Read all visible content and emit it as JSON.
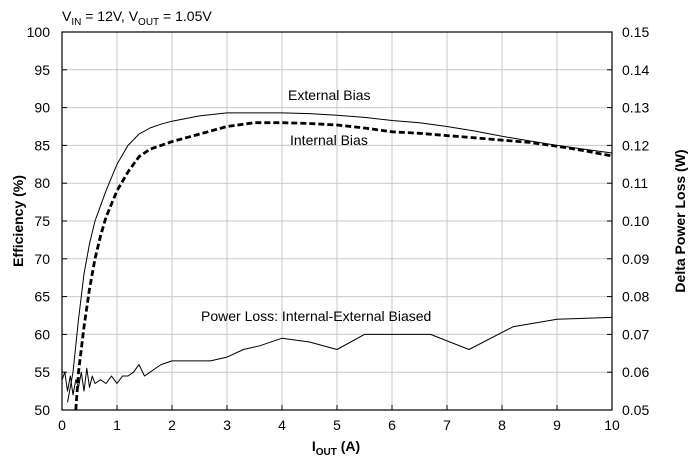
{
  "chart_data": {
    "type": "line",
    "title": {
      "vin_label": "V",
      "vin_sub": "IN",
      "vin_value": " = 12V, ",
      "vout_label": "V",
      "vout_sub": "OUT",
      "vout_value": " = 1.05V"
    },
    "xlabel": {
      "main": "I",
      "sub": "OUT",
      "unit": " (A)"
    },
    "ylabel_left": "Efficiency (%)",
    "ylabel_right": "Delta Power Loss (W)",
    "xlim": [
      0,
      10
    ],
    "ylim_left": [
      50,
      100
    ],
    "ylim_right": [
      0.05,
      0.15
    ],
    "xticks": [
      "0",
      "1",
      "2",
      "3",
      "4",
      "5",
      "6",
      "7",
      "8",
      "9",
      "10"
    ],
    "yticks_left": [
      "50",
      "55",
      "60",
      "65",
      "70",
      "75",
      "80",
      "85",
      "90",
      "95",
      "100"
    ],
    "yticks_right": [
      "0.05",
      "0.06",
      "0.07",
      "0.08",
      "0.09",
      "0.10",
      "0.11",
      "0.12",
      "0.13",
      "0.14",
      "0.15"
    ],
    "grid": true,
    "annotations": {
      "external": "External Bias",
      "internal": "Internal Bias",
      "loss": "Power Loss: Internal-External Biased"
    },
    "series": [
      {
        "name": "External Bias",
        "axis": "left",
        "style": "solid",
        "x": [
          0.1,
          0.2,
          0.3,
          0.4,
          0.5,
          0.6,
          0.7,
          0.8,
          1.0,
          1.2,
          1.4,
          1.6,
          1.8,
          2.0,
          2.5,
          3.0,
          3.5,
          4.0,
          4.5,
          5.0,
          5.5,
          6.0,
          6.5,
          7.0,
          7.5,
          8.0,
          8.5,
          9.0,
          9.5,
          10.0
        ],
        "y": [
          51,
          55,
          62,
          68,
          72,
          75,
          77,
          79,
          82.5,
          85,
          86.5,
          87.3,
          87.8,
          88.2,
          88.9,
          89.3,
          89.3,
          89.3,
          89.2,
          89.0,
          88.7,
          88.3,
          88.0,
          87.5,
          86.9,
          86.2,
          85.6,
          85.0,
          84.5,
          84.0
        ]
      },
      {
        "name": "Internal Bias",
        "axis": "left",
        "style": "dashed",
        "x": [
          0.25,
          0.3,
          0.4,
          0.5,
          0.6,
          0.7,
          0.8,
          1.0,
          1.2,
          1.4,
          1.6,
          1.8,
          2.0,
          2.5,
          3.0,
          3.5,
          4.0,
          4.5,
          5.0,
          5.5,
          6.0,
          6.5,
          7.0,
          7.5,
          8.0,
          8.5,
          9.0,
          9.5,
          10.0
        ],
        "y": [
          50,
          55,
          61,
          66,
          70,
          73,
          75.5,
          79,
          81.5,
          83.5,
          84.5,
          85,
          85.5,
          86.5,
          87.5,
          88,
          88,
          87.9,
          87.7,
          87.3,
          86.8,
          86.6,
          86.3,
          86,
          85.7,
          85.4,
          84.9,
          84.3,
          83.6
        ]
      },
      {
        "name": "Power Loss: Internal-External Biased",
        "axis": "right",
        "style": "solid",
        "x": [
          0,
          0.05,
          0.1,
          0.15,
          0.2,
          0.25,
          0.3,
          0.35,
          0.4,
          0.45,
          0.5,
          0.55,
          0.6,
          0.7,
          0.8,
          0.9,
          1.0,
          1.1,
          1.2,
          1.3,
          1.4,
          1.5,
          1.6,
          1.7,
          1.8,
          2.0,
          2.5,
          2.7,
          3.0,
          3.3,
          3.6,
          4.0,
          4.5,
          5.0,
          5.5,
          6.0,
          6.7,
          7.4,
          8.2,
          9.0,
          10.0
        ],
        "y": [
          0.058,
          0.06,
          0.055,
          0.059,
          0.054,
          0.058,
          0.056,
          0.06,
          0.055,
          0.061,
          0.056,
          0.059,
          0.057,
          0.058,
          0.057,
          0.059,
          0.057,
          0.059,
          0.059,
          0.06,
          0.062,
          0.059,
          0.06,
          0.061,
          0.062,
          0.063,
          0.063,
          0.063,
          0.064,
          0.066,
          0.067,
          0.069,
          0.068,
          0.066,
          0.07,
          0.07,
          0.07,
          0.066,
          0.072,
          0.074,
          0.0745
        ]
      }
    ]
  }
}
